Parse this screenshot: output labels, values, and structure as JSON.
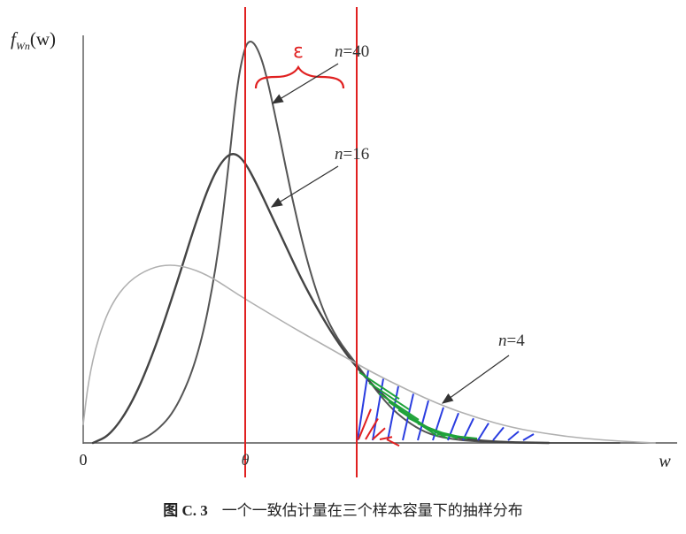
{
  "figure": {
    "y_axis_label": "f",
    "y_axis_sub": "Wn",
    "y_axis_arg": "(w)",
    "x_axis_label": "w",
    "origin_label": "0",
    "theta_label": "θ",
    "epsilon_label": "ε",
    "curves": [
      {
        "name": "n=40",
        "label_var": "n",
        "label_val": "=40",
        "color": "#555555",
        "width": 2
      },
      {
        "name": "n=16",
        "label_var": "n",
        "label_val": "=16",
        "color": "#444444",
        "width": 2.4
      },
      {
        "name": "n=4",
        "label_var": "n",
        "label_val": "=4",
        "color": "#b0b0b0",
        "width": 1.6
      }
    ],
    "colors": {
      "boundary_lines": "#e02020",
      "brace": "#e02020",
      "hatch_blue": "#2a3de0",
      "hatch_green": "#1fa33a",
      "hatch_red": "#e02020"
    }
  },
  "caption": {
    "label": "图 C. 3",
    "text": "一个一致估计量在三个样本容量下的抽样分布"
  }
}
